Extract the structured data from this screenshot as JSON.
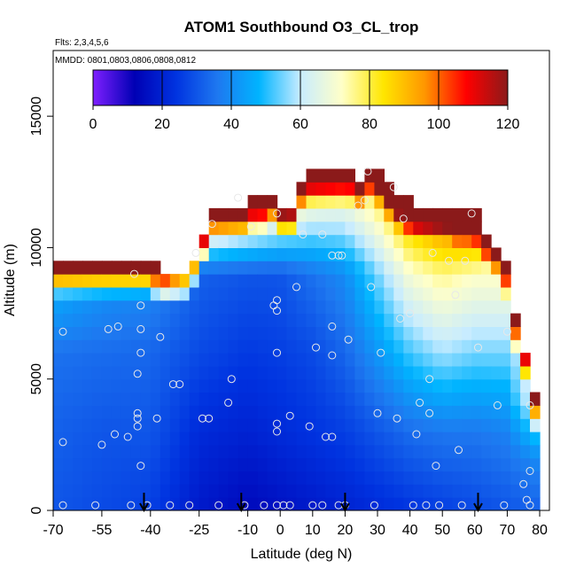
{
  "chart_data": {
    "type": "heatmap",
    "title": "ATOM1 Southbound O3_CL_trop",
    "flights_label": "Flts: 2,3,4,5,6",
    "dates_label": "MMDD: 0801,0803,0806,0808,0812",
    "xlabel": "Latitude (deg N)",
    "ylabel": "Altitude (m)",
    "xlim": [
      -70,
      83
    ],
    "ylim": [
      0,
      17500
    ],
    "x_ticks": [
      -70,
      -55,
      -40,
      -25,
      -10,
      0,
      10,
      20,
      30,
      40,
      50,
      60,
      70,
      80
    ],
    "x_tick_labels": [
      "-70",
      "-55",
      "-40",
      "-25",
      "-10",
      "0",
      "10",
      "20",
      "30",
      "40",
      "50",
      "60",
      "70",
      "80"
    ],
    "y_ticks": [
      0,
      5000,
      10000,
      15000
    ],
    "y_tick_labels": [
      "0",
      "5000",
      "10000",
      "15000"
    ],
    "colorbar": {
      "min": 0,
      "max": 120,
      "ticks": [
        0,
        20,
        40,
        60,
        80,
        100,
        120
      ],
      "tick_labels": [
        "0",
        "20",
        "40",
        "60",
        "80",
        "100",
        "120"
      ],
      "colors": [
        "#7f1fff",
        "#0000b4",
        "#0033e0",
        "#1e78f0",
        "#00b4ff",
        "#c8ecff",
        "#ffffc8",
        "#ffe600",
        "#ff9600",
        "#ff0000",
        "#8b1a1a"
      ]
    },
    "grid_x_step": 3,
    "grid_y_step": 500,
    "lat_bins": [
      -70,
      -67,
      -64,
      -61,
      -58,
      -55,
      -52,
      -49,
      -46,
      -43,
      -40,
      -37,
      -34,
      -31,
      -28,
      -25,
      -22,
      -19,
      -16,
      -13,
      -10,
      -7,
      -4,
      -1,
      2,
      5,
      8,
      11,
      14,
      17,
      20,
      23,
      26,
      29,
      32,
      35,
      38,
      41,
      44,
      47,
      50,
      53,
      56,
      59,
      62,
      65,
      68,
      71,
      74,
      77
    ],
    "ceiling_m": [
      9500,
      9500,
      9500,
      9500,
      9500,
      9500,
      9500,
      9500,
      9500,
      9500,
      9200,
      9000,
      9000,
      9000,
      9500,
      10500,
      11500,
      11500,
      11500,
      11500,
      11800,
      11800,
      12000,
      11500,
      11500,
      12500,
      12800,
      12800,
      12800,
      12800,
      12800,
      12500,
      13000,
      12700,
      12200,
      11800,
      11600,
      11500,
      11500,
      11500,
      11500,
      11300,
      11300,
      11200,
      10500,
      10000,
      9300,
      7200,
      6000,
      4300
    ],
    "ozone_profiles": [
      {
        "lat": -70,
        "alt": [
          0,
          3000,
          6000,
          8000,
          9500
        ],
        "o3": [
          30,
          32,
          35,
          45,
          90
        ]
      },
      {
        "lat": -55,
        "alt": [
          0,
          3000,
          6000,
          8000,
          9500
        ],
        "o3": [
          28,
          30,
          34,
          40,
          90
        ]
      },
      {
        "lat": -40,
        "alt": [
          0,
          3000,
          6000,
          8000,
          9500
        ],
        "o3": [
          26,
          30,
          33,
          38,
          90
        ]
      },
      {
        "lat": -25,
        "alt": [
          0,
          3000,
          6000,
          9000,
          11500
        ],
        "o3": [
          18,
          22,
          28,
          32,
          95
        ]
      },
      {
        "lat": -10,
        "alt": [
          0,
          3000,
          6000,
          9000,
          11800
        ],
        "o3": [
          14,
          20,
          25,
          30,
          90
        ]
      },
      {
        "lat": 0,
        "alt": [
          0,
          3000,
          6000,
          9000,
          12000
        ],
        "o3": [
          16,
          22,
          26,
          30,
          85
        ]
      },
      {
        "lat": 10,
        "alt": [
          0,
          3000,
          6000,
          9000,
          12800
        ],
        "o3": [
          18,
          24,
          28,
          35,
          85
        ]
      },
      {
        "lat": 20,
        "alt": [
          0,
          3000,
          6000,
          9000,
          12800
        ],
        "o3": [
          20,
          26,
          33,
          40,
          80
        ]
      },
      {
        "lat": 30,
        "alt": [
          0,
          3000,
          6000,
          9000,
          12500
        ],
        "o3": [
          22,
          30,
          42,
          55,
          85
        ]
      },
      {
        "lat": 40,
        "alt": [
          0,
          3000,
          6000,
          9000,
          11500
        ],
        "o3": [
          24,
          34,
          52,
          70,
          95
        ]
      },
      {
        "lat": 50,
        "alt": [
          0,
          3000,
          6000,
          9000,
          11500
        ],
        "o3": [
          26,
          36,
          58,
          76,
          105
        ]
      },
      {
        "lat": 60,
        "alt": [
          0,
          3000,
          6000,
          9000,
          11000
        ],
        "o3": [
          28,
          36,
          55,
          72,
          105
        ]
      },
      {
        "lat": 70,
        "alt": [
          0,
          3000,
          6000,
          9000
        ],
        "o3": [
          30,
          38,
          55,
          72
        ]
      },
      {
        "lat": 80,
        "alt": [
          0,
          2000,
          4300
        ],
        "o3": [
          32,
          40,
          70
        ]
      }
    ],
    "sample_points": [
      [
        -67,
        200
      ],
      [
        -67,
        2600
      ],
      [
        -67,
        6800
      ],
      [
        -57,
        200
      ],
      [
        -55,
        2500
      ],
      [
        -53,
        6900
      ],
      [
        -51,
        2900
      ],
      [
        -50,
        7000
      ],
      [
        -47,
        2800
      ],
      [
        -46,
        200
      ],
      [
        -45,
        9000
      ],
      [
        -44,
        3200
      ],
      [
        -44,
        3500
      ],
      [
        -44,
        3700
      ],
      [
        -44,
        5200
      ],
      [
        -43,
        1700
      ],
      [
        -43,
        6000
      ],
      [
        -43,
        6900
      ],
      [
        -43,
        7800
      ],
      [
        -41,
        200
      ],
      [
        -38,
        3500
      ],
      [
        -37,
        6600
      ],
      [
        -34,
        200
      ],
      [
        -33,
        4800
      ],
      [
        -31,
        4800
      ],
      [
        -28,
        200
      ],
      [
        -26,
        9800
      ],
      [
        -24,
        3500
      ],
      [
        -22,
        3500
      ],
      [
        -21,
        10900
      ],
      [
        -19,
        200
      ],
      [
        -16,
        4100
      ],
      [
        -15,
        5000
      ],
      [
        -13,
        11900
      ],
      [
        -11,
        200
      ],
      [
        -9,
        10800
      ],
      [
        -5,
        200
      ],
      [
        -2,
        7800
      ],
      [
        -1,
        200
      ],
      [
        -1,
        3000
      ],
      [
        -1,
        3300
      ],
      [
        -1,
        6000
      ],
      [
        -1,
        7600
      ],
      [
        -1,
        8000
      ],
      [
        -1,
        11300
      ],
      [
        1,
        200
      ],
      [
        3,
        200
      ],
      [
        3,
        3600
      ],
      [
        5,
        8500
      ],
      [
        7,
        10500
      ],
      [
        9,
        3200
      ],
      [
        10,
        200
      ],
      [
        11,
        6200
      ],
      [
        13,
        200
      ],
      [
        13,
        10500
      ],
      [
        14,
        2800
      ],
      [
        16,
        2800
      ],
      [
        16,
        5900
      ],
      [
        16,
        7000
      ],
      [
        16,
        9700
      ],
      [
        18,
        9700
      ],
      [
        18,
        200
      ],
      [
        19,
        9700
      ],
      [
        20,
        200
      ],
      [
        21,
        6500
      ],
      [
        24,
        11600
      ],
      [
        26,
        11800
      ],
      [
        27,
        12900
      ],
      [
        28,
        8500
      ],
      [
        29,
        200
      ],
      [
        30,
        3700
      ],
      [
        31,
        6000
      ],
      [
        35,
        12300
      ],
      [
        36,
        3500
      ],
      [
        37,
        7300
      ],
      [
        38,
        11100
      ],
      [
        40,
        7500
      ],
      [
        41,
        200
      ],
      [
        42,
        2900
      ],
      [
        43,
        4100
      ],
      [
        45,
        200
      ],
      [
        46,
        3700
      ],
      [
        46,
        5000
      ],
      [
        47,
        9800
      ],
      [
        48,
        1700
      ],
      [
        49,
        200
      ],
      [
        52,
        9500
      ],
      [
        54,
        8200
      ],
      [
        55,
        2300
      ],
      [
        56,
        200
      ],
      [
        57,
        9500
      ],
      [
        59,
        11300
      ],
      [
        61,
        6200
      ],
      [
        67,
        4000
      ],
      [
        69,
        200
      ],
      [
        70,
        6800
      ],
      [
        75,
        1000
      ],
      [
        76,
        400
      ],
      [
        77,
        1500
      ],
      [
        77,
        200
      ],
      [
        77,
        4000
      ]
    ],
    "markers_lat": [
      -42,
      -12,
      20,
      61
    ],
    "marker_label": "sonde launch arrow"
  }
}
